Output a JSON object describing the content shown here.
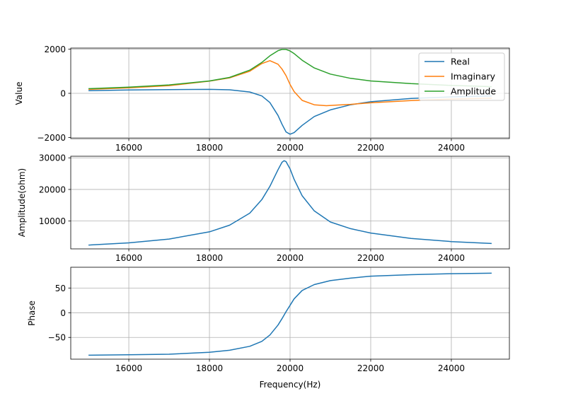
{
  "chart_data": [
    {
      "type": "line",
      "xlabel": "",
      "ylabel": "Value",
      "xlim": [
        14560,
        25440
      ],
      "ylim": [
        -2050,
        2050
      ],
      "xticks": [
        16000,
        18000,
        20000,
        22000,
        24000
      ],
      "xtick_labels": [
        "16000",
        "18000",
        "20000",
        "22000",
        "24000"
      ],
      "yticks": [
        -2000,
        0,
        2000
      ],
      "ytick_labels": [
        "−2000",
        "0",
        "2000"
      ],
      "grid": true,
      "legend": "upper right",
      "series": [
        {
          "name": "Real",
          "color": "#1f77b4",
          "x": [
            15000,
            16000,
            17000,
            18000,
            18500,
            19000,
            19300,
            19500,
            19700,
            19800,
            19900,
            20000,
            20100,
            20300,
            20600,
            21000,
            21500,
            22000,
            23000,
            24000,
            25000
          ],
          "y": [
            120,
            150,
            170,
            180,
            160,
            60,
            -120,
            -420,
            -1000,
            -1400,
            -1750,
            -1850,
            -1780,
            -1450,
            -1050,
            -750,
            -520,
            -380,
            -230,
            -160,
            -120
          ]
        },
        {
          "name": "Imaginary",
          "color": "#ff7f0e",
          "x": [
            15000,
            16000,
            17000,
            18000,
            18500,
            19000,
            19300,
            19500,
            19700,
            19800,
            19900,
            20000,
            20100,
            20300,
            20600,
            20900,
            21200,
            21500,
            22000,
            23000,
            24000,
            25000
          ],
          "y": [
            180,
            250,
            350,
            550,
            700,
            1000,
            1350,
            1480,
            1320,
            1100,
            800,
            400,
            80,
            -320,
            -520,
            -560,
            -530,
            -500,
            -430,
            -330,
            -260,
            -220
          ]
        },
        {
          "name": "Amplitude",
          "color": "#2ca02c",
          "x": [
            15000,
            16000,
            17000,
            18000,
            18500,
            19000,
            19300,
            19500,
            19700,
            19800,
            19900,
            20000,
            20100,
            20300,
            20600,
            21000,
            21500,
            22000,
            23000,
            24000,
            25000
          ],
          "y": [
            210,
            280,
            380,
            560,
            720,
            1050,
            1400,
            1700,
            1930,
            1990,
            1990,
            1920,
            1800,
            1500,
            1150,
            870,
            680,
            560,
            440,
            360,
            300
          ]
        }
      ]
    },
    {
      "type": "line",
      "xlabel": "",
      "ylabel": "Amplitude(ohm)",
      "xlim": [
        14560,
        25440
      ],
      "ylim": [
        1200,
        30500
      ],
      "xticks": [
        16000,
        18000,
        20000,
        22000,
        24000
      ],
      "xtick_labels": [
        "16000",
        "18000",
        "20000",
        "22000",
        "24000"
      ],
      "yticks": [
        10000,
        20000,
        30000
      ],
      "ytick_labels": [
        "10000",
        "20000",
        "30000"
      ],
      "grid": true,
      "series": [
        {
          "name": "",
          "color": "#1f77b4",
          "x": [
            15000,
            16000,
            17000,
            18000,
            18500,
            19000,
            19300,
            19500,
            19700,
            19800,
            19850,
            19900,
            20000,
            20100,
            20300,
            20600,
            21000,
            21500,
            22000,
            23000,
            24000,
            25000
          ],
          "y": [
            2400,
            3100,
            4300,
            6600,
            8700,
            12500,
            16800,
            21000,
            26200,
            28600,
            29100,
            28800,
            26500,
            23200,
            18000,
            13200,
            9700,
            7600,
            6200,
            4500,
            3500,
            2900
          ]
        }
      ]
    },
    {
      "type": "line",
      "xlabel": "Frequency(Hz)",
      "ylabel": "Phase",
      "xlim": [
        14560,
        25440
      ],
      "ylim": [
        -94,
        92
      ],
      "xticks": [
        16000,
        18000,
        20000,
        22000,
        24000
      ],
      "xtick_labels": [
        "16000",
        "18000",
        "20000",
        "22000",
        "24000"
      ],
      "yticks": [
        -50,
        0,
        50
      ],
      "ytick_labels": [
        "−50",
        "0",
        "50"
      ],
      "grid": true,
      "series": [
        {
          "name": "",
          "color": "#1f77b4",
          "x": [
            15000,
            16000,
            17000,
            18000,
            18500,
            19000,
            19300,
            19500,
            19700,
            19800,
            19900,
            20000,
            20100,
            20300,
            20600,
            21000,
            21500,
            22000,
            23000,
            24000,
            25000
          ],
          "y": [
            -86,
            -85,
            -84,
            -80,
            -76,
            -68,
            -58,
            -45,
            -25,
            -12,
            2,
            15,
            28,
            45,
            57,
            65,
            70,
            74,
            77,
            79,
            80
          ]
        }
      ]
    }
  ]
}
